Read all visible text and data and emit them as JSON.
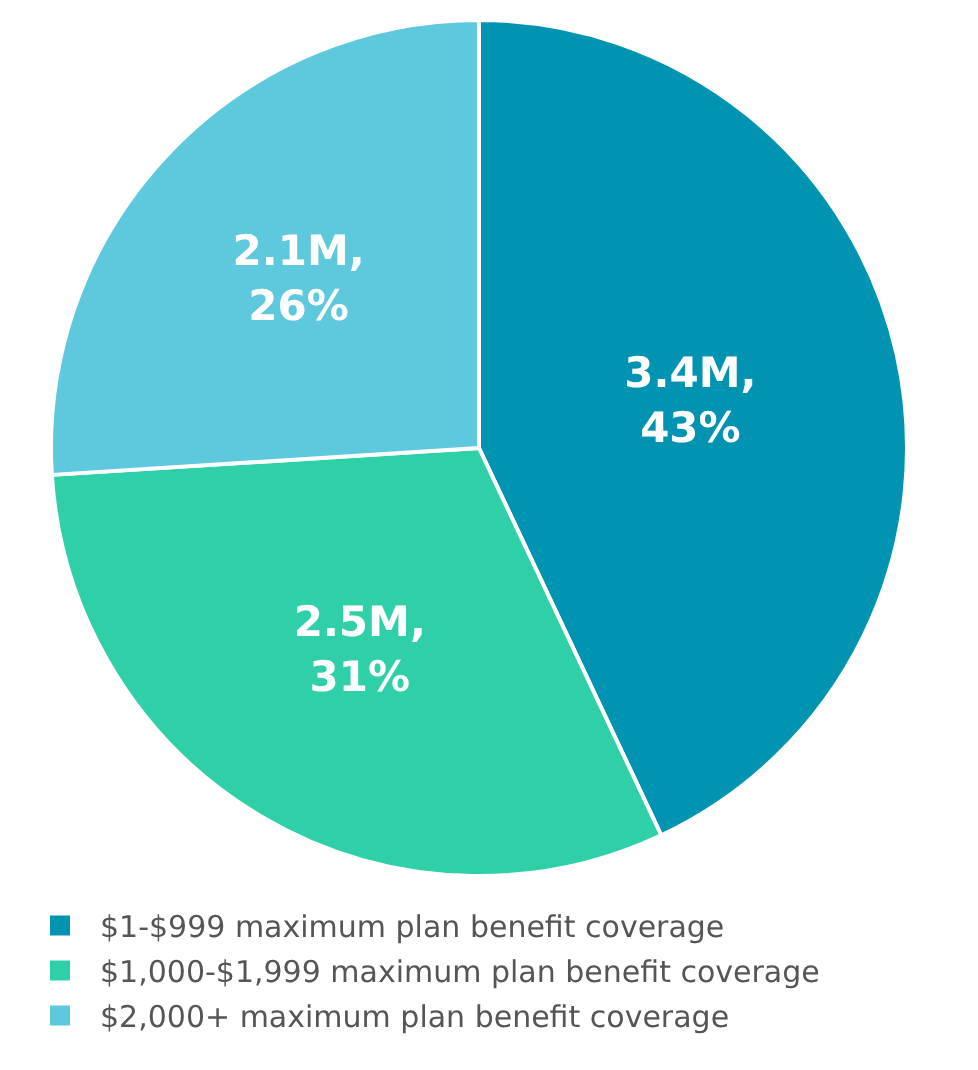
{
  "chart_data": {
    "type": "pie",
    "categories": [
      "$1-$999 maximum plan benefit coverage",
      "$1,000-$1,999 maximum plan benefit coverage",
      "$2,000+ maximum plan benefit coverage"
    ],
    "values": [
      43,
      31,
      26
    ],
    "value_labels": [
      "3.4M,\n43%",
      "2.5M,\n31%",
      "2.1M,\n26%"
    ],
    "colors": [
      "#0093b2",
      "#2fd0a8",
      "#5ec8dc"
    ],
    "legend": "bottom"
  }
}
